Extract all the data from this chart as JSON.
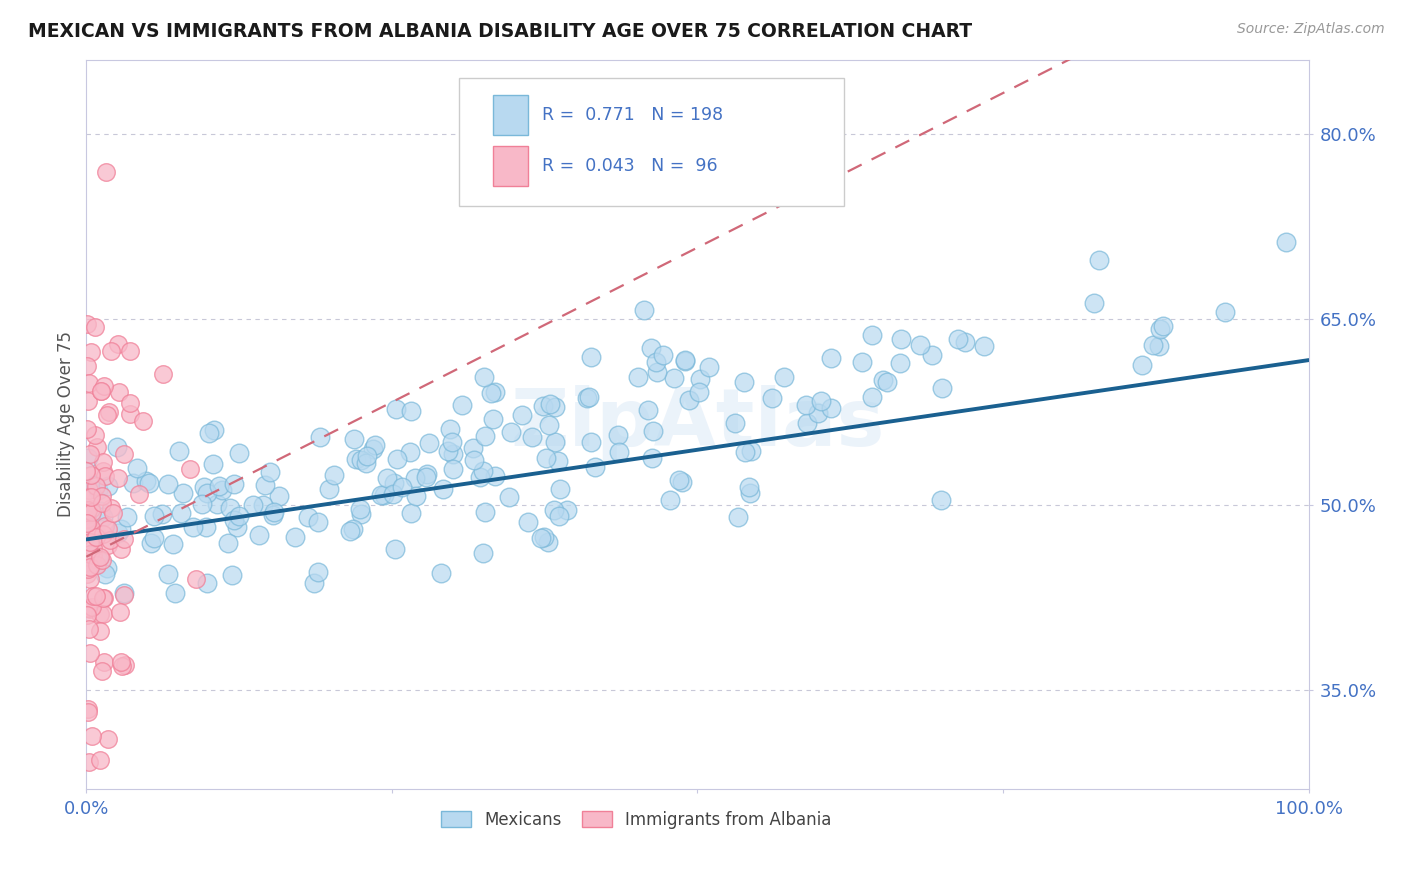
{
  "title": "MEXICAN VS IMMIGRANTS FROM ALBANIA DISABILITY AGE OVER 75 CORRELATION CHART",
  "source": "Source: ZipAtlas.com",
  "ylabel": "Disability Age Over 75",
  "xlim": [
    0.0,
    1.0
  ],
  "ylim": [
    0.27,
    0.86
  ],
  "yticks": [
    0.35,
    0.5,
    0.65,
    0.8
  ],
  "ytick_labels": [
    "35.0%",
    "50.0%",
    "65.0%",
    "80.0%"
  ],
  "xtick_labels": [
    "0.0%",
    "100.0%"
  ],
  "mexican_color": "#7ab8d9",
  "mexico_fill": "#b8d9f0",
  "albania_color": "#f08098",
  "albania_fill": "#f8b8c8",
  "trend_mexican_color": "#1a6090",
  "trend_albania_color": "#d06878",
  "R_mexican": 0.771,
  "N_mexican": 198,
  "R_albania": 0.043,
  "N_albania": 96,
  "legend_label_mexican": "Mexicans",
  "legend_label_albania": "Immigrants from Albania",
  "watermark": "ZipAtlas",
  "title_color": "#1a1a1a",
  "axis_label_color": "#4472c4",
  "ylabel_color": "#555555",
  "background_color": "#ffffff",
  "grid_color": "#c8c8d8",
  "spine_color": "#c8c8e0"
}
